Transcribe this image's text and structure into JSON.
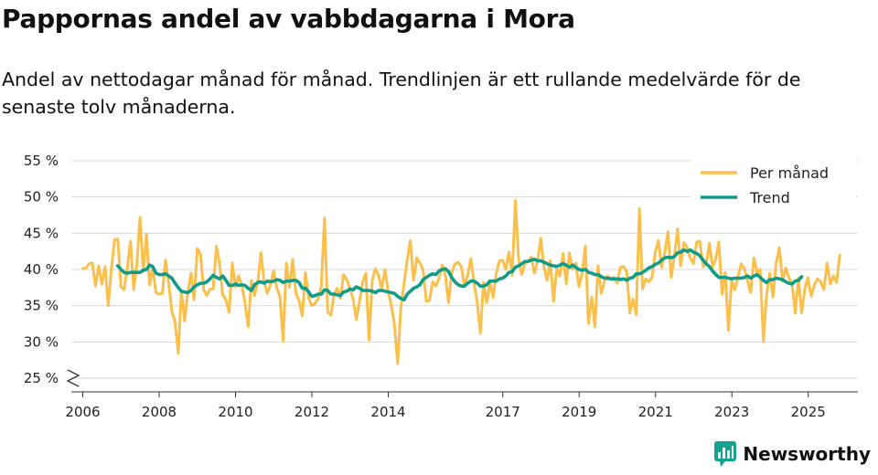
{
  "title": "Pappornas andel av vabbdagarna i Mora",
  "subtitle": "Andel av nettodagar månad för månad. Trendlinjen är ett rullande medelvärde för de senaste tolv månaderna.",
  "brand": {
    "name": "Newsworthy",
    "color": "#14a393",
    "icon": "bar-chart-logo-icon"
  },
  "chart_data": {
    "type": "line",
    "xlabel": "",
    "ylabel": "",
    "ylim": [
      25,
      55
    ],
    "yticks": [
      25,
      30,
      35,
      40,
      45,
      50,
      55
    ],
    "ytick_labels": [
      "25 %",
      "30 %",
      "35 %",
      "40 %",
      "45 %",
      "50 %",
      "55 %"
    ],
    "xlim": [
      2005.7,
      2026.3
    ],
    "xticks": [
      2006,
      2008,
      2010,
      2012,
      2014,
      2017,
      2019,
      2021,
      2023,
      2025
    ],
    "xtick_labels": [
      "2006",
      "2008",
      "2010",
      "2012",
      "2014",
      "2017",
      "2019",
      "2021",
      "2023",
      "2025"
    ],
    "grid": true,
    "axis_break": true,
    "legend_position": "top-right",
    "series": [
      {
        "name": "Per månad",
        "color": "#fbc04b",
        "x_start": 2006.0,
        "x_step": 0.0833,
        "values": [
          40.1,
          40.2,
          40.8,
          40.9,
          37.7,
          40.5,
          38.0,
          40.4,
          35.0,
          40.1,
          44.1,
          44.2,
          37.6,
          37.2,
          40.2,
          43.9,
          37.2,
          40.7,
          47.2,
          39.7,
          44.9,
          37.9,
          40.3,
          36.8,
          36.6,
          36.7,
          41.3,
          38.2,
          34.2,
          32.8,
          28.4,
          37.0,
          32.9,
          36.8,
          39.5,
          35.8,
          42.9,
          42.1,
          37.2,
          36.4,
          37.3,
          37.3,
          43.2,
          40.9,
          36.5,
          35.8,
          34.1,
          40.9,
          37.6,
          39.1,
          37.8,
          35.4,
          32.1,
          38.5,
          36.4,
          38.2,
          42.3,
          38.4,
          36.7,
          37.9,
          39.8,
          37.4,
          36.3,
          30.1,
          40.9,
          37.5,
          41.4,
          36.7,
          35.7,
          33.6,
          39.6,
          36.1,
          35.0,
          35.3,
          36.0,
          37.7,
          47.1,
          34.1,
          33.7,
          36.6,
          37.4,
          36.0,
          39.3,
          38.6,
          37.4,
          35.9,
          33.1,
          35.6,
          38.3,
          39.5,
          30.3,
          38.5,
          40.1,
          39.2,
          37.3,
          40.0,
          37.0,
          35.1,
          32.4,
          27.0,
          34.7,
          38.1,
          41.3,
          44.0,
          38.5,
          41.6,
          40.9,
          40.0,
          35.6,
          35.7,
          38.3,
          37.7,
          38.8,
          40.6,
          39.2,
          35.4,
          39.6,
          40.7,
          41.0,
          40.4,
          37.8,
          39.2,
          41.5,
          38.1,
          35.5,
          31.2,
          38.2,
          35.4,
          38.2,
          36.1,
          39.5,
          41.2,
          41.3,
          40.0,
          42.4,
          39.2,
          49.5,
          41.5,
          39.3,
          40.9,
          41.1,
          41.7,
          39.5,
          41.2,
          44.3,
          40.3,
          38.5,
          41.2,
          35.6,
          40.1,
          39.1,
          42.2,
          38.0,
          42.3,
          40.0,
          40.9,
          37.6,
          39.5,
          43.2,
          32.6,
          36.2,
          32.1,
          40.5,
          36.7,
          38.3,
          39.1,
          38.7,
          38.9,
          38.1,
          40.3,
          40.4,
          39.7,
          34.0,
          35.9,
          33.8,
          48.4,
          37.3,
          38.7,
          38.3,
          38.9,
          42.4,
          44.0,
          40.3,
          42.4,
          45.2,
          38.9,
          41.9,
          45.6,
          40.5,
          43.7,
          43.0,
          41.6,
          40.8,
          43.8,
          43.9,
          40.4,
          40.7,
          43.6,
          40.3,
          41.5,
          43.8,
          36.6,
          39.6,
          31.6,
          38.5,
          37.2,
          39.0,
          40.8,
          40.1,
          38.5,
          36.8,
          41.6,
          39.6,
          40.0,
          30.1,
          36.5,
          39.5,
          36.2,
          40.9,
          43.0,
          38.4,
          40.2,
          38.9,
          38.0,
          34.0,
          38.8,
          34.0,
          37.3,
          38.9,
          36.3,
          37.9,
          38.7,
          38.3,
          37.2,
          40.9,
          38.0,
          39.1,
          38.2,
          42.0
        ]
      },
      {
        "name": "Trend",
        "color": "#109c88",
        "x_start": 2006.9167,
        "x_step": 0.0833,
        "values": [
          40.5,
          40.0,
          39.6,
          39.5,
          39.6,
          39.6,
          39.6,
          39.6,
          39.9,
          40.0,
          40.6,
          40.4,
          39.5,
          39.3,
          39.3,
          39.4,
          39.1,
          38.8,
          38.1,
          37.5,
          37.0,
          36.9,
          36.8,
          37.1,
          37.6,
          37.9,
          38.1,
          38.1,
          38.3,
          38.7,
          39.2,
          38.9,
          38.7,
          39.1,
          38.5,
          37.8,
          37.8,
          38.0,
          37.8,
          37.9,
          37.8,
          37.4,
          37.1,
          37.9,
          38.2,
          38.3,
          38.1,
          38.4,
          38.3,
          38.4,
          38.6,
          38.5,
          38.2,
          38.4,
          38.4,
          38.5,
          38.5,
          38.2,
          37.4,
          37.4,
          36.9,
          36.3,
          36.4,
          36.6,
          36.6,
          37.2,
          37.1,
          36.6,
          36.6,
          36.5,
          36.4,
          36.9,
          37.0,
          37.3,
          37.2,
          37.6,
          37.4,
          37.1,
          37.1,
          37.1,
          37.0,
          36.8,
          37.1,
          37.1,
          37.0,
          36.9,
          36.8,
          36.7,
          36.3,
          36.0,
          35.8,
          36.6,
          37.0,
          37.4,
          37.6,
          37.9,
          38.6,
          38.9,
          39.2,
          39.4,
          39.3,
          39.8,
          40.0,
          40.1,
          39.7,
          38.9,
          38.3,
          37.9,
          37.7,
          37.7,
          38.1,
          38.4,
          38.4,
          38.1,
          37.7,
          37.7,
          37.9,
          38.4,
          38.4,
          38.4,
          38.7,
          38.8,
          39.1,
          39.6,
          39.7,
          40.3,
          40.5,
          40.8,
          41.1,
          41.1,
          41.3,
          41.4,
          41.2,
          41.2,
          41.0,
          40.8,
          40.6,
          40.5,
          40.4,
          40.6,
          40.8,
          40.6,
          40.3,
          40.6,
          40.3,
          40.0,
          39.9,
          40.0,
          39.6,
          39.5,
          39.3,
          39.3,
          39.0,
          38.8,
          38.8,
          38.7,
          38.7,
          38.7,
          38.6,
          38.7,
          38.5,
          38.8,
          38.9,
          39.4,
          39.4,
          39.6,
          39.9,
          40.2,
          40.4,
          40.7,
          40.9,
          41.3,
          41.6,
          41.7,
          41.6,
          41.8,
          42.3,
          42.4,
          42.7,
          42.5,
          42.7,
          42.4,
          42.2,
          41.9,
          41.3,
          40.8,
          40.4,
          39.8,
          39.3,
          38.9,
          38.9,
          38.9,
          38.8,
          38.7,
          38.8,
          38.8,
          38.8,
          38.9,
          39.1,
          38.8,
          39.1,
          39.3,
          38.9,
          38.5,
          38.2,
          38.6,
          38.6,
          38.8,
          38.7,
          38.6,
          38.3,
          38.1,
          38.0,
          38.4,
          38.5,
          39.0
        ]
      }
    ]
  }
}
